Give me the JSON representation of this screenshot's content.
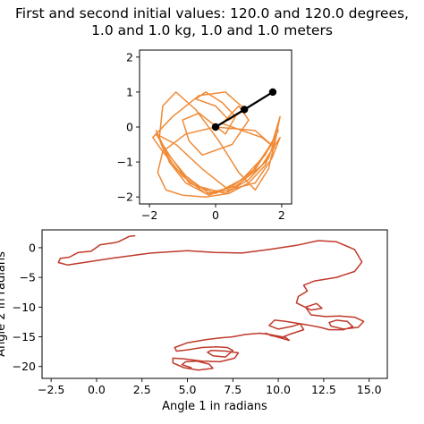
{
  "title": {
    "line1": "First and second initial values: 120.0 and 120.0 degrees,",
    "line2": "1.0 and 1.0 kg, 1.0 and 1.0 meters"
  },
  "colors": {
    "trajectory": "#f08a36",
    "phase": "#c0392b",
    "pendulum": "#000000"
  },
  "chart_data": [
    {
      "type": "line",
      "name": "pendulum-trajectory",
      "xlim": [
        -2.3,
        2.3
      ],
      "ylim": [
        -2.2,
        2.2
      ],
      "xticks": [
        -2,
        0,
        2
      ],
      "yticks": [
        -2,
        -1,
        0,
        1,
        2
      ],
      "grid": false,
      "pendulum_points": [
        [
          0,
          0
        ],
        [
          0.87,
          0.5
        ],
        [
          1.73,
          1.0
        ]
      ],
      "series": [
        {
          "x": [
            0,
            -0.9,
            -1.6,
            -1.75,
            -1.5,
            -1.0,
            -0.3,
            0.4,
            1.0,
            1.5,
            1.8,
            1.95,
            1.7,
            1.2,
            0.5,
            -0.2,
            -0.9,
            -1.4,
            -1.7,
            -1.6,
            -1.2,
            -0.6,
            0.1,
            0.7,
            1.2,
            1.6,
            1.85,
            1.6,
            1.0,
            0.3,
            -0.5,
            -1.2,
            -1.6,
            -1.8,
            -1.5,
            -0.9,
            -0.2,
            0.5,
            1.1,
            1.6,
            1.9,
            1.5,
            0.8,
            0.0,
            -0.8,
            -1.4,
            -1.8,
            -1.2,
            -0.4,
            0.4,
            1.2,
            1.7,
            1.95,
            1.4,
            0.6,
            -0.3,
            -1.0,
            -1.6,
            -1.9,
            -1.3,
            -0.5,
            0.3,
            0.9,
            0.4,
            0.0,
            -0.6,
            -0.3,
            0.2,
            0.6,
            0.3,
            -0.1,
            -0.5,
            -1.0,
            -0.8,
            -0.4,
            0.5,
            1.0,
            0.7,
            0.2,
            1.4,
            1.8,
            1.2,
            0.0
          ],
          "y": [
            0,
            -0.2,
            -0.7,
            -1.3,
            -1.8,
            -1.95,
            -2.0,
            -1.9,
            -1.6,
            -1.1,
            -0.4,
            0.3,
            -0.5,
            -1.2,
            -1.7,
            -1.95,
            -1.6,
            -1.0,
            -0.3,
            0.6,
            1.0,
            0.5,
            -0.4,
            -1.3,
            -1.8,
            -1.2,
            -0.2,
            -0.9,
            -1.5,
            -1.9,
            -1.7,
            -1.2,
            -0.6,
            -0.1,
            -0.7,
            -1.4,
            -1.9,
            -1.8,
            -1.3,
            -0.6,
            -0.1,
            -0.8,
            -1.5,
            -1.9,
            -1.6,
            -0.8,
            -0.2,
            -0.5,
            -1.2,
            -1.8,
            -1.6,
            -0.9,
            -0.3,
            -1.1,
            -1.7,
            -1.9,
            -1.4,
            -0.7,
            -0.3,
            0.3,
            0.9,
            1.0,
            0.5,
            0.2,
            0.6,
            0.8,
            1.0,
            0.7,
            0.3,
            -0.2,
            0.1,
            0.4,
            0.2,
            -0.4,
            -0.8,
            -0.5,
            0.2,
            0.6,
            0.1,
            -0.3,
            -0.6,
            -0.1,
            0.0
          ]
        }
      ]
    },
    {
      "type": "line",
      "name": "phase-plot",
      "xlabel": "Angle 1 in radians",
      "ylabel": "Angle 2 in radians",
      "xlim": [
        -3.0,
        16.0
      ],
      "ylim": [
        -22.0,
        3.0
      ],
      "xticks": [
        -2.5,
        0.0,
        2.5,
        5.0,
        7.5,
        10.0,
        12.5,
        15.0
      ],
      "xticklabels": [
        "−2.5",
        "0.0",
        "2.5",
        "5.0",
        "7.5",
        "10.0",
        "12.5",
        "15.0"
      ],
      "yticks": [
        0,
        -5,
        -10,
        -15,
        -20
      ],
      "yticklabels": [
        "0",
        "−5",
        "−10",
        "−15",
        "−20"
      ],
      "grid": false,
      "series": [
        {
          "x": [
            2.1,
            1.8,
            1.2,
            0.9,
            0.2,
            -0.3,
            -1.0,
            -1.5,
            -2.0,
            -2.1,
            -1.6,
            -0.5,
            1.0,
            3.0,
            5.0,
            6.5,
            8.0,
            9.5,
            11.0,
            12.2,
            13.2,
            14.2,
            14.6,
            14.2,
            13.2,
            12.0,
            11.4,
            11.6,
            11.1,
            11.0,
            11.8,
            12.4,
            12.1,
            11.5,
            11.8,
            12.6,
            13.4,
            14.2,
            14.7,
            14.4,
            13.6,
            12.9,
            12.8,
            13.2,
            13.8,
            14.1,
            13.6,
            12.8,
            12.3,
            11.6,
            11.0,
            10.4,
            9.8,
            9.5,
            10.0,
            10.8,
            11.2,
            11.4,
            10.6,
            10.2,
            9.6,
            9.3,
            9.8,
            10.6,
            10.4,
            9.5,
            9.0,
            8.2,
            7.5,
            6.8,
            6.0,
            5.0,
            4.3,
            4.4,
            5.0,
            5.8,
            6.6,
            7.2,
            7.5,
            7.1,
            6.4,
            6.1,
            6.3,
            7.1,
            7.8,
            7.6,
            6.8,
            5.8,
            4.8,
            4.2,
            4.2,
            4.8,
            5.6,
            6.4,
            6.2,
            5.5,
            4.9,
            4.7,
            5.2
          ],
          "y": [
            2.0,
            1.9,
            1.0,
            0.8,
            0.5,
            -0.6,
            -0.8,
            -1.6,
            -1.8,
            -2.5,
            -2.9,
            -2.4,
            -1.7,
            -0.9,
            -0.5,
            -0.8,
            -0.9,
            -0.3,
            0.4,
            1.2,
            1.0,
            -0.3,
            -2.4,
            -4.0,
            -5.0,
            -5.6,
            -6.3,
            -7.3,
            -8.2,
            -9.3,
            -10.5,
            -10.2,
            -9.4,
            -10.0,
            -11.3,
            -11.6,
            -11.5,
            -11.7,
            -12.4,
            -13.4,
            -13.7,
            -13.2,
            -12.6,
            -12.2,
            -12.4,
            -13.3,
            -13.8,
            -13.8,
            -13.4,
            -13.0,
            -12.7,
            -12.4,
            -12.2,
            -13.1,
            -13.7,
            -13.2,
            -12.8,
            -13.8,
            -14.6,
            -15.1,
            -14.8,
            -14.4,
            -14.9,
            -15.6,
            -15.1,
            -14.6,
            -14.4,
            -14.6,
            -15.0,
            -15.2,
            -15.5,
            -16.0,
            -16.8,
            -17.4,
            -17.2,
            -16.8,
            -16.7,
            -16.8,
            -17.3,
            -18.4,
            -18.2,
            -17.6,
            -17.3,
            -17.4,
            -17.7,
            -18.6,
            -19.2,
            -19.1,
            -18.7,
            -18.6,
            -19.4,
            -20.2,
            -20.6,
            -20.3,
            -19.6,
            -19.1,
            -19.2,
            -19.7,
            -20.2
          ]
        }
      ]
    }
  ]
}
